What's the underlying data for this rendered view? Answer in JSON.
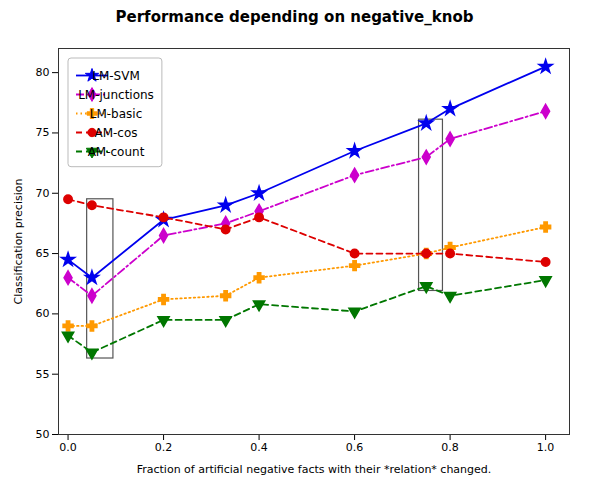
{
  "chart_data": {
    "type": "line",
    "title": "Performance depending on negative_knob",
    "x_label": "Fraction of artificial negative facts with their *relation* changed.",
    "y_label": "Classification precision",
    "xlim": [
      -0.02,
      1.05
    ],
    "ylim": [
      50,
      82
    ],
    "xticks": [
      {
        "value": 0.0,
        "label": "0.0"
      },
      {
        "value": 0.2,
        "label": "0.2"
      },
      {
        "value": 0.4,
        "label": "0.4"
      },
      {
        "value": 0.6,
        "label": "0.6"
      },
      {
        "value": 0.8,
        "label": "0.8"
      },
      {
        "value": 1.0,
        "label": "1.0"
      }
    ],
    "yticks": [
      50,
      55,
      60,
      65,
      70,
      75,
      80
    ],
    "grid": false,
    "legend": "upper left",
    "x": [
      0.0,
      0.05,
      0.2,
      0.33,
      0.4,
      0.6,
      0.75,
      0.8,
      1.0
    ],
    "series": [
      {
        "name": "LM-SVM",
        "color": "#0000ee",
        "line_style": "solid",
        "marker": "star",
        "values": [
          64.5,
          63.0,
          67.8,
          69.0,
          70.0,
          73.5,
          75.8,
          77.0,
          80.5
        ]
      },
      {
        "name": "LM-junctions",
        "color": "#cc00cc",
        "line_style": "dashdot",
        "marker": "diamond",
        "values": [
          63.0,
          61.5,
          66.5,
          67.5,
          68.5,
          71.5,
          73.0,
          74.5,
          76.8
        ]
      },
      {
        "name": "LM-basic",
        "color": "#ff9900",
        "line_style": "dotted",
        "marker": "plus",
        "values": [
          59.0,
          59.0,
          61.2,
          61.5,
          63.0,
          64.0,
          65.0,
          65.5,
          67.2
        ]
      },
      {
        "name": "AM-cos",
        "color": "#dd0000",
        "line_style": "dashed",
        "marker": "circle",
        "values": [
          69.5,
          69.0,
          68.0,
          67.0,
          68.0,
          65.0,
          65.0,
          65.0,
          64.3
        ]
      },
      {
        "name": "AM-count",
        "color": "#007700",
        "line_style": "dashed",
        "marker": "triangle-down",
        "values": [
          58.2,
          56.8,
          59.5,
          59.5,
          60.8,
          60.2,
          62.3,
          61.5,
          62.8
        ]
      }
    ],
    "rectangles": [
      {
        "x": 0.04,
        "y": 56.3,
        "width": 0.055,
        "height": 13.2,
        "color": "#555555"
      },
      {
        "x": 0.735,
        "y": 61.9,
        "width": 0.05,
        "height": 14.2,
        "color": "#555555"
      }
    ]
  }
}
